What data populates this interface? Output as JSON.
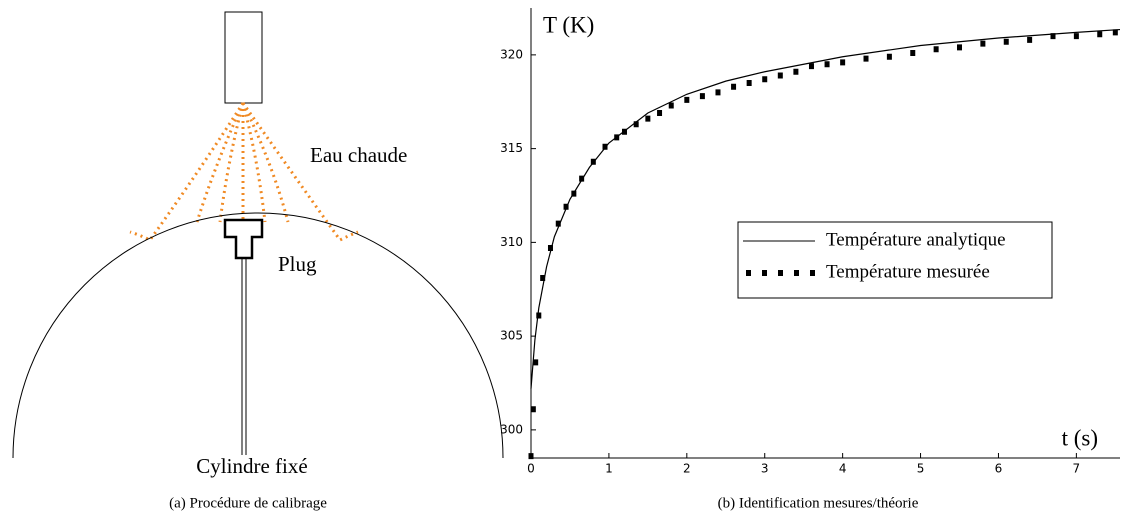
{
  "diagram": {
    "labels": {
      "spray": "Eau chaude",
      "plug": "Plug",
      "cylinder": "Cylindre fixé"
    },
    "caption": "(a)  Procédure de calibrage"
  },
  "chart_data": {
    "type": "line",
    "caption": "(b)  Identification mesures/théorie",
    "y_label": "T (K)",
    "x_label": "t (s)",
    "xlim": [
      0,
      7.56
    ],
    "xticks": [
      0,
      1,
      2,
      3,
      4,
      5,
      6,
      7
    ],
    "ylim": [
      298.5,
      322.5
    ],
    "yticks": [
      300,
      305,
      310,
      315,
      320
    ],
    "grid": false,
    "legend": "right",
    "series": [
      {
        "name": "Température analytique",
        "color": "#000000",
        "marker": "none",
        "x": [
          0,
          0.05,
          0.1,
          0.2,
          0.3,
          0.5,
          0.75,
          1,
          1.5,
          2,
          2.5,
          3,
          3.5,
          4,
          5,
          6,
          7,
          7.56
        ],
        "values": [
          302.2,
          304.8,
          306.5,
          308.7,
          310.3,
          312.3,
          314,
          315.3,
          316.9,
          317.9,
          318.6,
          319.1,
          319.5,
          319.9,
          320.5,
          320.9,
          321.2,
          321.35
        ]
      },
      {
        "name": "Température mesurée",
        "color": "#000000",
        "marker": "square",
        "x": [
          0,
          0.03,
          0.06,
          0.1,
          0.15,
          0.25,
          0.35,
          0.45,
          0.55,
          0.65,
          0.8,
          0.95,
          1.1,
          1.2,
          1.35,
          1.5,
          1.65,
          1.8,
          2.0,
          2.2,
          2.4,
          2.6,
          2.8,
          3.0,
          3.2,
          3.4,
          3.6,
          3.8,
          4.0,
          4.3,
          4.6,
          4.9,
          5.2,
          5.5,
          5.8,
          6.1,
          6.4,
          6.7,
          7.0,
          7.3,
          7.5
        ],
        "values": [
          298.6,
          301.1,
          303.6,
          306.1,
          308.1,
          309.7,
          311.0,
          311.9,
          312.6,
          313.4,
          314.3,
          315.1,
          315.6,
          315.9,
          316.3,
          316.6,
          316.9,
          317.3,
          317.6,
          317.8,
          318.0,
          318.3,
          318.5,
          318.7,
          318.9,
          319.1,
          319.4,
          319.5,
          319.6,
          319.8,
          319.9,
          320.1,
          320.3,
          320.4,
          320.6,
          320.7,
          320.8,
          321.0,
          321.0,
          321.1,
          321.2
        ]
      }
    ]
  }
}
